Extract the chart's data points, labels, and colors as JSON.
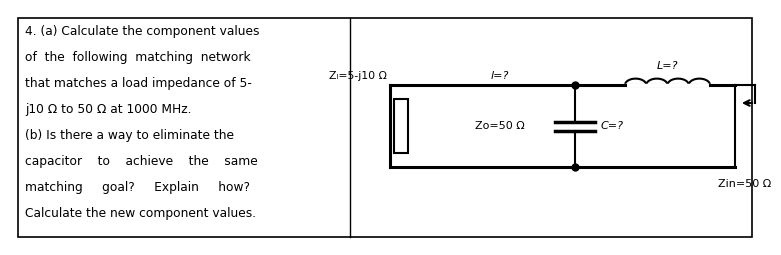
{
  "bg_color": "#ffffff",
  "border_color": "#000000",
  "text_left": [
    "4. (a) Calculate the component values",
    "of  the  following  matching  network",
    "that matches a load impedance of 5-",
    "j10 Ω to 50 Ω at 1000 MHz.",
    "(b) Is there a way to eliminate the",
    "capacitor    to    achieve    the    same",
    "matching     goal?     Explain     how?",
    "Calculate the new component values."
  ],
  "circuit": {
    "ZL_label": "Zₗ=5-j10 Ω",
    "l_label": "l=?",
    "L_label": "L=?",
    "Zo_label": "Zo=50 Ω",
    "C_label": "C=?",
    "Zin_label": "Zin=50 Ω"
  }
}
